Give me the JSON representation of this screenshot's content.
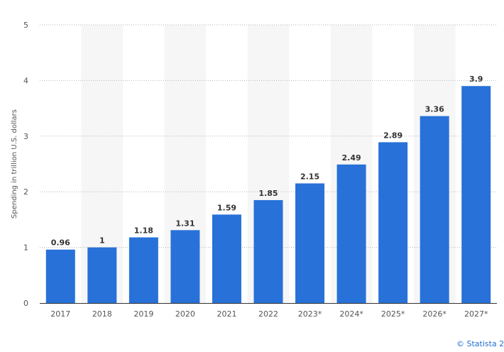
{
  "chart_data": {
    "type": "bar",
    "categories": [
      "2017",
      "2018",
      "2019",
      "2020",
      "2021",
      "2022",
      "2023*",
      "2024*",
      "2025*",
      "2026*",
      "2027*"
    ],
    "values": [
      0.96,
      1,
      1.18,
      1.31,
      1.59,
      1.85,
      2.15,
      2.49,
      2.89,
      3.36,
      3.9
    ],
    "value_labels": [
      "0.96",
      "1",
      "1.18",
      "1.31",
      "1.59",
      "1.85",
      "2.15",
      "2.49",
      "2.89",
      "3.36",
      "3.9"
    ],
    "title": "",
    "xlabel": "",
    "ylabel": "Spending in trillion U.S. dollars",
    "ylim": [
      0,
      5
    ],
    "yticks": [
      0,
      1,
      2,
      3,
      4,
      5
    ],
    "grid": true,
    "legend": "none",
    "bar_color": "#2771d8",
    "band_color": "#f6f6f6"
  },
  "credit": "© Statista 2"
}
